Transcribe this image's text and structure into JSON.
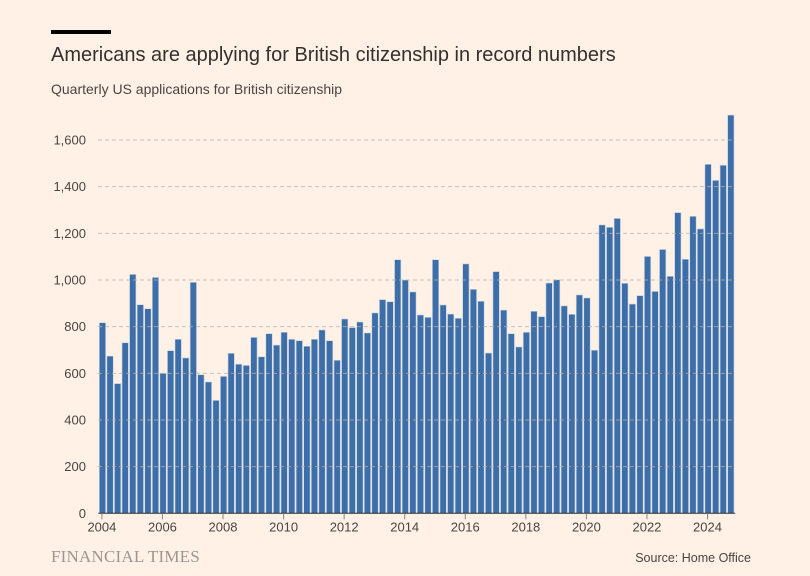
{
  "header": {
    "title": "Americans are applying for British citizenship in record numbers",
    "subtitle": "Quarterly US applications for British citizenship"
  },
  "footer": {
    "brand": "FINANCIAL TIMES",
    "source": "Source: Home Office"
  },
  "colors": {
    "background": "#fff1e5",
    "bar": "#3d6ea8",
    "bar_outline": "#c9d6e6",
    "gridline": "#b8b2ad",
    "text": "#33302e",
    "axis": "#33302e"
  },
  "chart_data": {
    "type": "bar",
    "title": "Americans are applying for British citizenship in record numbers",
    "subtitle": "Quarterly US applications for British citizenship",
    "xlabel": "",
    "ylabel": "",
    "ylim": [
      0,
      1700
    ],
    "grid": true,
    "yticks": [
      0,
      200,
      400,
      600,
      800,
      1000,
      1200,
      1400,
      1600
    ],
    "ytick_labels": [
      "0",
      "200",
      "400",
      "600",
      "800",
      "1,000",
      "1,200",
      "1,400",
      "1,600"
    ],
    "xticks": [
      "2004",
      "2006",
      "2008",
      "2010",
      "2012",
      "2014",
      "2016",
      "2018",
      "2020",
      "2022",
      "2024"
    ],
    "x_start": "2004 Q1",
    "x_end": "2024 Q4",
    "frequency": "quarterly",
    "categories": [
      "2004 Q1",
      "2004 Q2",
      "2004 Q3",
      "2004 Q4",
      "2005 Q1",
      "2005 Q2",
      "2005 Q3",
      "2005 Q4",
      "2006 Q1",
      "2006 Q2",
      "2006 Q3",
      "2006 Q4",
      "2007 Q1",
      "2007 Q2",
      "2007 Q3",
      "2007 Q4",
      "2008 Q1",
      "2008 Q2",
      "2008 Q3",
      "2008 Q4",
      "2009 Q1",
      "2009 Q2",
      "2009 Q3",
      "2009 Q4",
      "2010 Q1",
      "2010 Q2",
      "2010 Q3",
      "2010 Q4",
      "2011 Q1",
      "2011 Q2",
      "2011 Q3",
      "2011 Q4",
      "2012 Q1",
      "2012 Q2",
      "2012 Q3",
      "2012 Q4",
      "2013 Q1",
      "2013 Q2",
      "2013 Q3",
      "2013 Q4",
      "2014 Q1",
      "2014 Q2",
      "2014 Q3",
      "2014 Q4",
      "2015 Q1",
      "2015 Q2",
      "2015 Q3",
      "2015 Q4",
      "2016 Q1",
      "2016 Q2",
      "2016 Q3",
      "2016 Q4",
      "2017 Q1",
      "2017 Q2",
      "2017 Q3",
      "2017 Q4",
      "2018 Q1",
      "2018 Q2",
      "2018 Q3",
      "2018 Q4",
      "2019 Q1",
      "2019 Q2",
      "2019 Q3",
      "2019 Q4",
      "2020 Q1",
      "2020 Q2",
      "2020 Q3",
      "2020 Q4",
      "2021 Q1",
      "2021 Q2",
      "2021 Q3",
      "2021 Q4",
      "2022 Q1",
      "2022 Q2",
      "2022 Q3",
      "2022 Q4",
      "2023 Q1",
      "2023 Q2",
      "2023 Q3",
      "2023 Q4",
      "2024 Q1",
      "2024 Q2",
      "2024 Q3",
      "2024 Q4"
    ],
    "series": [
      {
        "name": "US applications",
        "values": [
          817,
          674,
          556,
          731,
          1024,
          894,
          877,
          1011,
          600,
          697,
          746,
          666,
          990,
          594,
          563,
          484,
          587,
          686,
          639,
          634,
          754,
          671,
          770,
          721,
          776,
          746,
          740,
          716,
          746,
          786,
          740,
          656,
          833,
          796,
          820,
          773,
          859,
          916,
          907,
          1087,
          1000,
          949,
          850,
          840,
          1087,
          893,
          854,
          836,
          1069,
          960,
          909,
          687,
          1036,
          871,
          770,
          713,
          776,
          866,
          843,
          987,
          1001,
          889,
          853,
          936,
          923,
          699,
          1236,
          1226,
          1264,
          986,
          897,
          933,
          1101,
          951,
          1131,
          1016,
          1289,
          1089,
          1273,
          1219,
          1496,
          1427,
          1492,
          1707
        ]
      }
    ]
  }
}
